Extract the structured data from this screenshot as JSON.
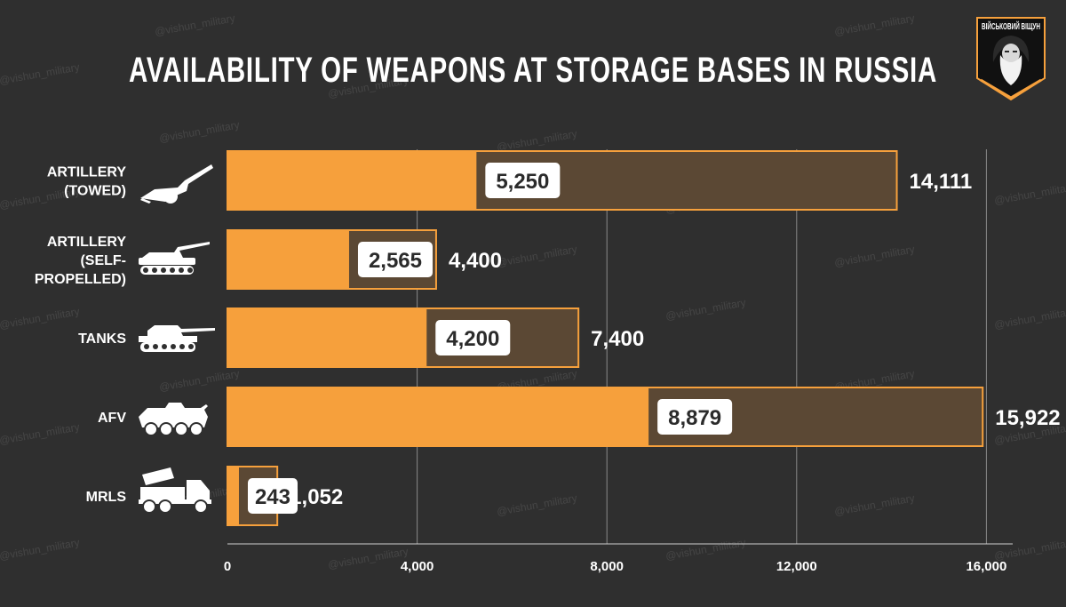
{
  "title": "AVAILABILITY OF WEAPONS AT STORAGE BASES IN RUSSIA",
  "watermark": "@vishun_military",
  "logo": {
    "text": "ВІЙСЬКОВИЙ ВІЩУН",
    "icon": "bearded-prophet-emblem"
  },
  "colors": {
    "background": "#2f2f2f",
    "available": "#f6a03c",
    "total": "#5b4834",
    "outline": "#f6a03c",
    "label_box": "#ffffff",
    "grid": "#8a8a8a"
  },
  "chart_data": {
    "type": "bar",
    "orientation": "horizontal",
    "stacked_overlay": true,
    "categories": [
      {
        "lines": [
          "ARTILLERY",
          "(TOWED)"
        ],
        "icon": "towed-howitzer-icon"
      },
      {
        "lines": [
          "ARTILLERY",
          "(SELF-",
          "PROPELLED)"
        ],
        "icon": "self-propelled-gun-icon"
      },
      {
        "lines": [
          "TANKS"
        ],
        "icon": "tank-icon"
      },
      {
        "lines": [
          "AFV"
        ],
        "icon": "armored-vehicle-icon"
      },
      {
        "lines": [
          "MRLS"
        ],
        "icon": "rocket-launcher-truck-icon"
      }
    ],
    "series": [
      {
        "values": [
          5250,
          2565,
          4200,
          8879,
          243
        ],
        "labels": [
          "5,250",
          "2,565",
          "4,200",
          "8,879",
          "243"
        ]
      },
      {
        "values": [
          14111,
          4400,
          7400,
          15922,
          1052
        ],
        "labels": [
          "14,111",
          "4,400",
          "7,400",
          "15,922",
          "1,052"
        ]
      }
    ],
    "xlim": [
      0,
      16000
    ],
    "xticks": [
      0,
      4000,
      8000,
      12000,
      16000
    ],
    "xtick_labels": [
      "0",
      "4,000",
      "8,000",
      "12,000",
      "16,000"
    ],
    "grid": true,
    "legend": "none"
  }
}
